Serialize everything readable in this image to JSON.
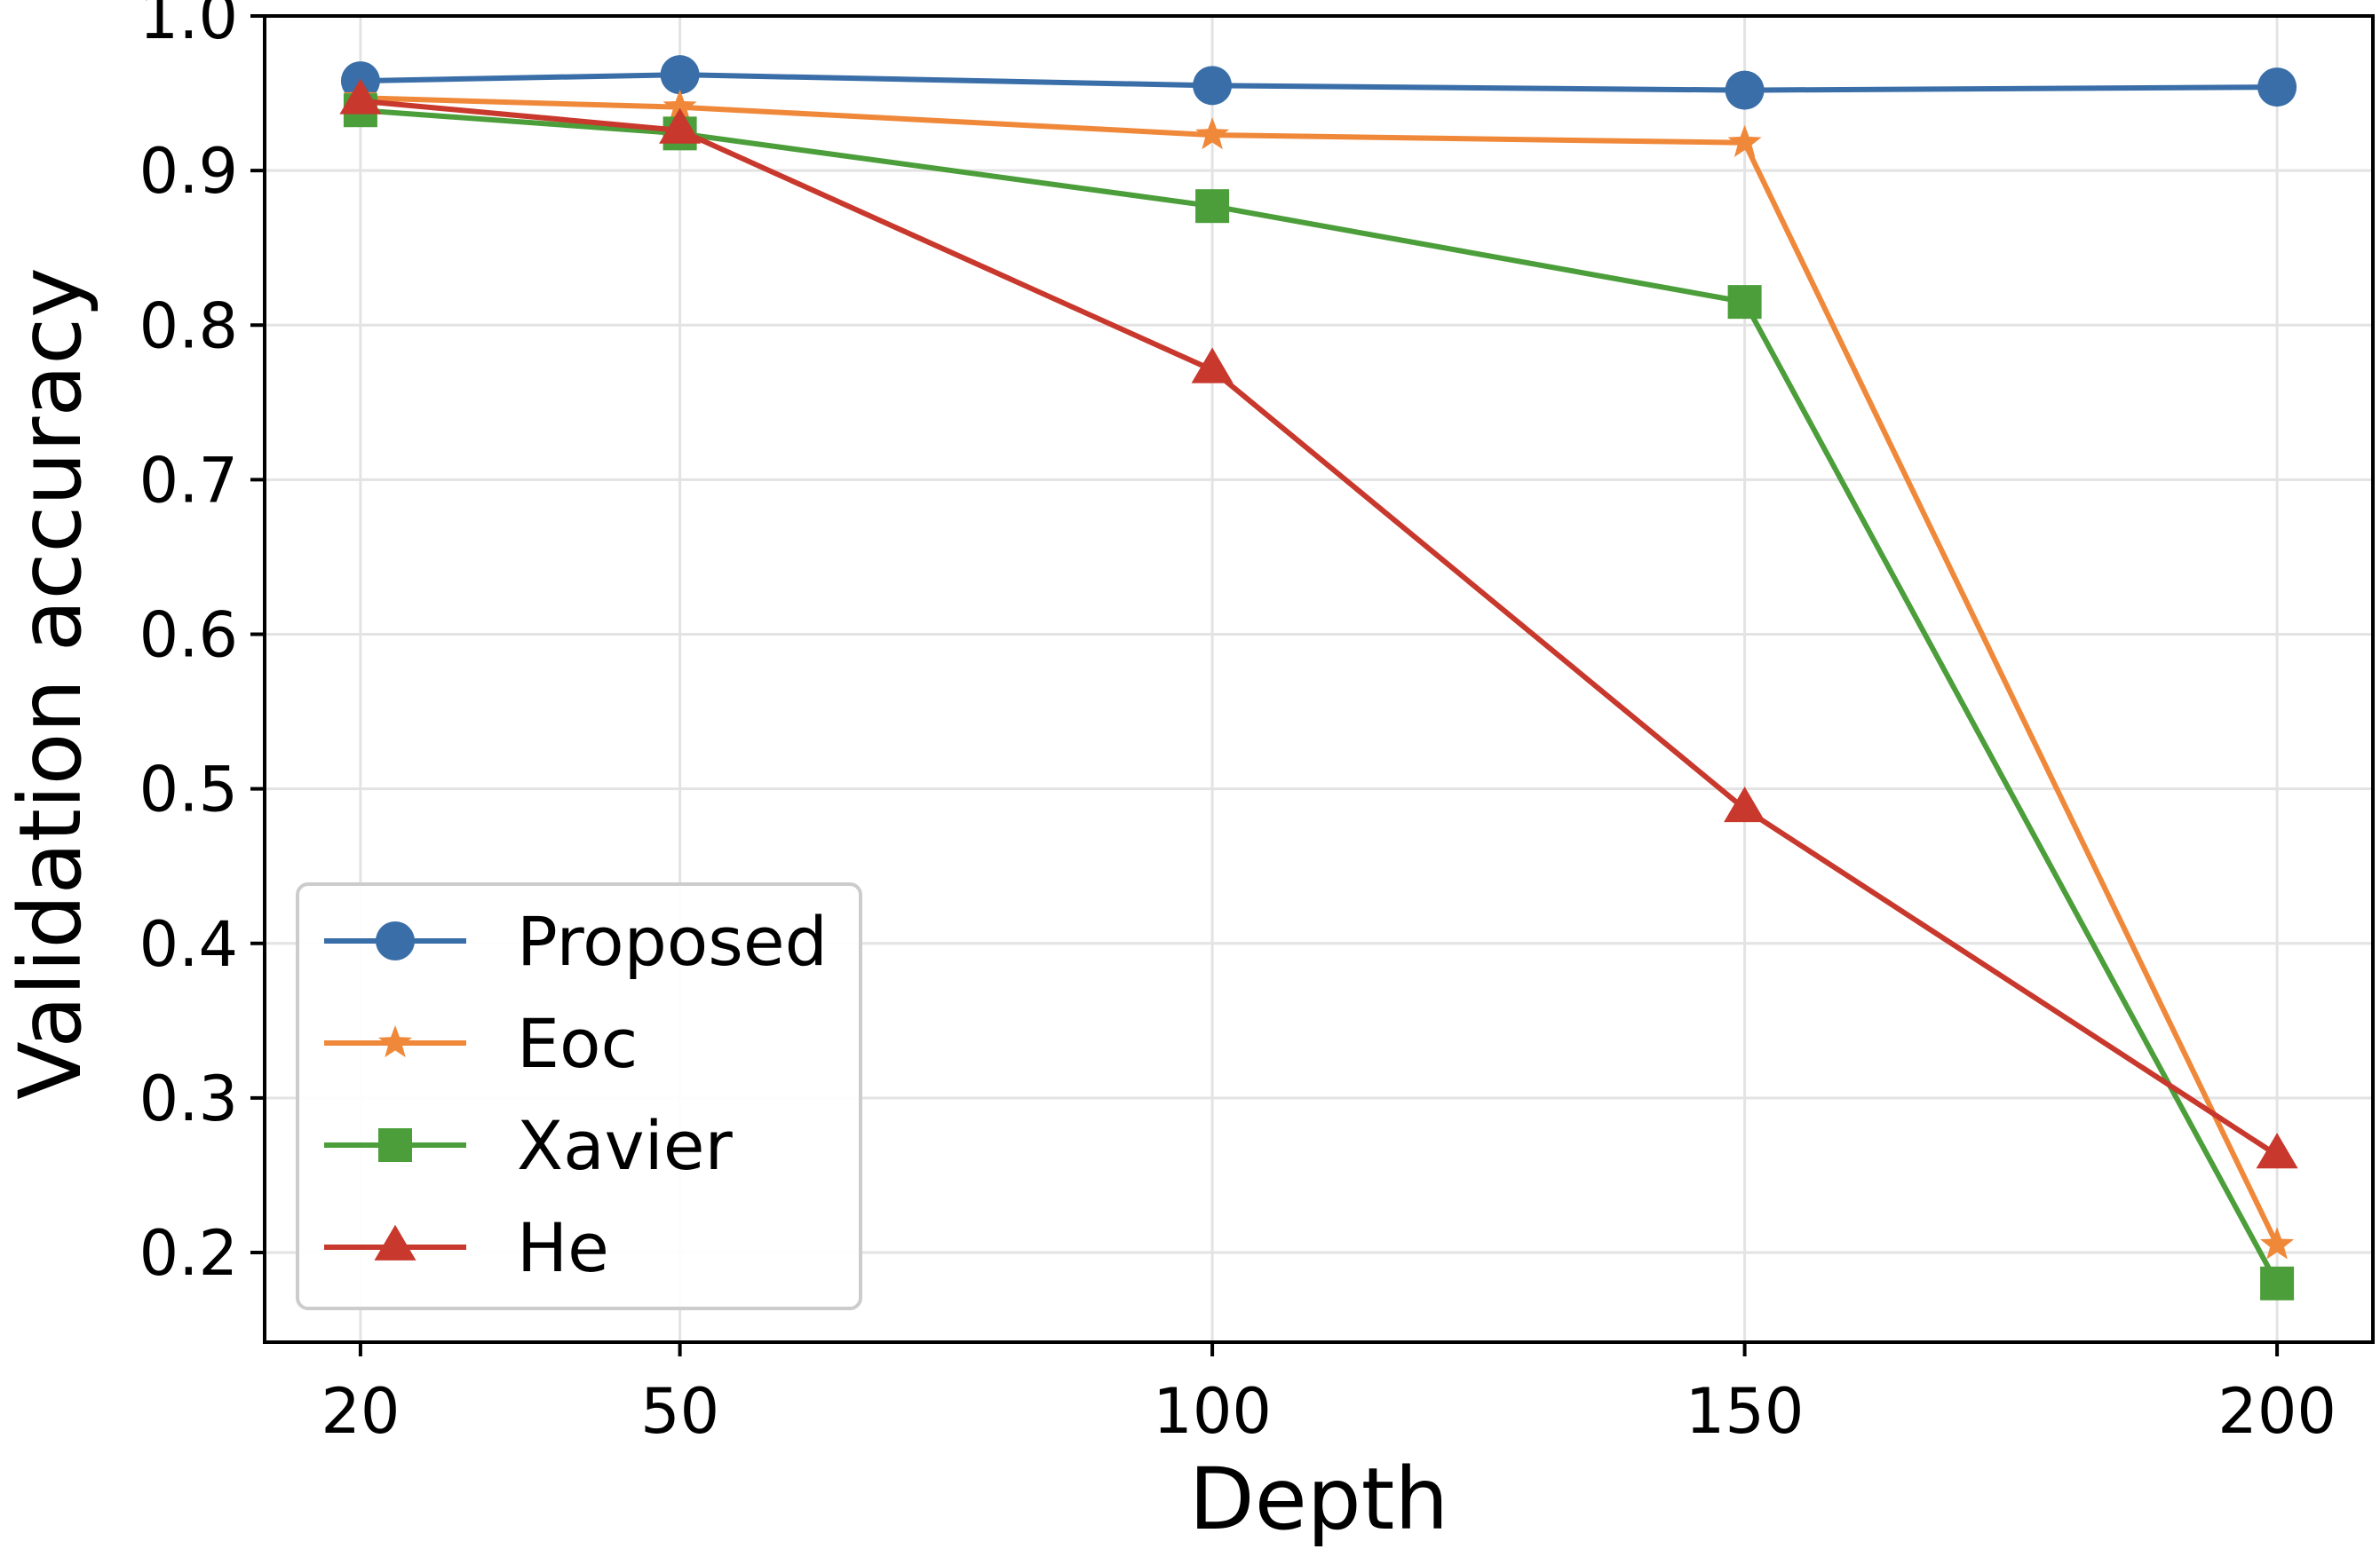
{
  "chart_data": {
    "type": "line",
    "title": "",
    "xlabel": "Depth",
    "ylabel": "Validation accuracy",
    "x": [
      20,
      50,
      100,
      150,
      200
    ],
    "xticks": [
      "20",
      "50",
      "100",
      "150",
      "200"
    ],
    "yticks": [
      "0.2",
      "0.3",
      "0.4",
      "0.5",
      "0.6",
      "0.7",
      "0.8",
      "0.9",
      "1.0"
    ],
    "xlim": [
      11,
      209
    ],
    "ylim": [
      0.142,
      1.0
    ],
    "grid": true,
    "legend_position": "lower-left",
    "series": [
      {
        "name": "Proposed",
        "color": "#3a6ea8",
        "marker": "circle",
        "values": [
          0.958,
          0.962,
          0.955,
          0.952,
          0.954
        ]
      },
      {
        "name": "Eoc",
        "color": "#f0883a",
        "marker": "star",
        "values": [
          0.947,
          0.941,
          0.923,
          0.918,
          0.205
        ]
      },
      {
        "name": "Xavier",
        "color": "#4b9e3a",
        "marker": "square",
        "values": [
          0.939,
          0.924,
          0.877,
          0.815,
          0.18
        ]
      },
      {
        "name": "He",
        "color": "#c8382c",
        "marker": "triangle",
        "values": [
          0.945,
          0.926,
          0.771,
          0.487,
          0.263
        ]
      }
    ]
  }
}
